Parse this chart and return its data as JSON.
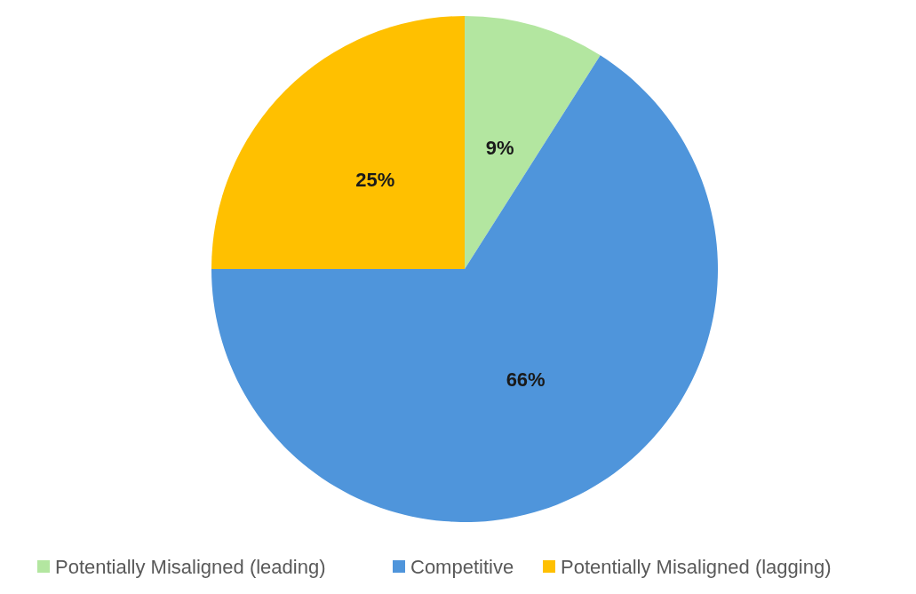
{
  "chart_data": {
    "type": "pie",
    "categories": [
      "Potentially Misaligned (leading)",
      "Competitive",
      "Potentially Misaligned (lagging)"
    ],
    "values": [
      9,
      66,
      25
    ],
    "colors": [
      "#b3e6a0",
      "#4f95db",
      "#ffc000"
    ],
    "value_labels": [
      "9%",
      "66%",
      "25%"
    ],
    "legend": "bottom"
  }
}
